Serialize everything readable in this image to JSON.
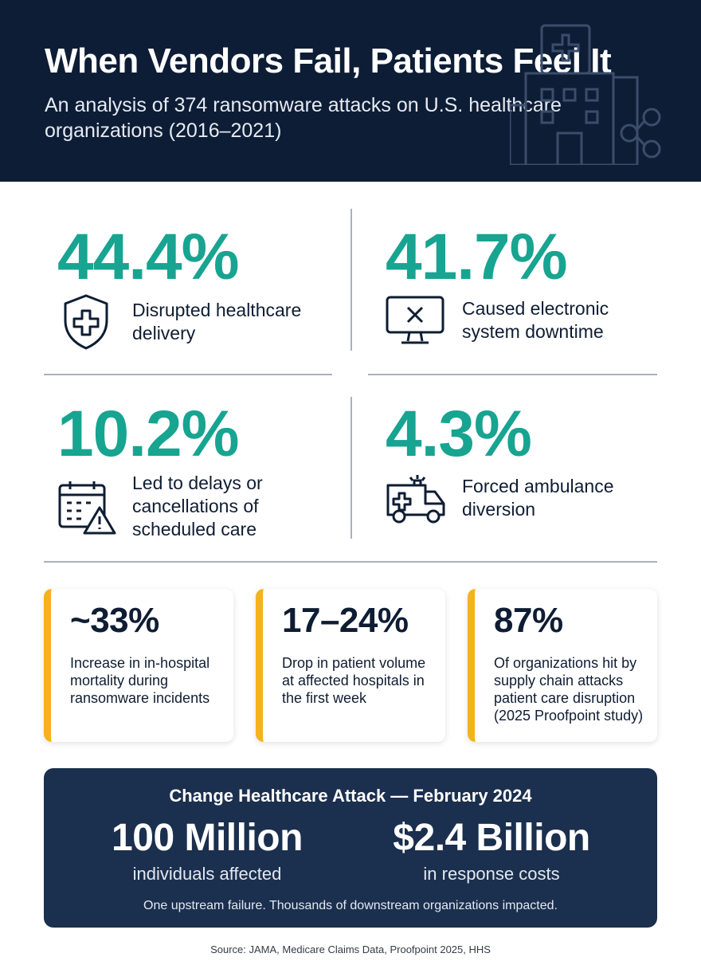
{
  "header": {
    "title": "When Vendors Fail, Patients Feel It",
    "subtitle": "An analysis of 374 ransomware attacks on U.S. healthcare organizations (2016–2021)"
  },
  "stats": [
    {
      "value": "44.4%",
      "label": "Disrupted healthcare delivery",
      "icon": "shield-cross-icon"
    },
    {
      "value": "41.7%",
      "label": "Caused electronic system downtime",
      "icon": "monitor-x-icon"
    },
    {
      "value": "10.2%",
      "label": "Led to delays or cancellations of scheduled care",
      "icon": "calendar-warning-icon"
    },
    {
      "value": "4.3%",
      "label": "Forced ambulance diversion",
      "icon": "ambulance-icon"
    }
  ],
  "cards": [
    {
      "value": "~33%",
      "text": "Increase in in-hospital mortality during ransomware incidents"
    },
    {
      "value": "17–24%",
      "text": "Drop in patient volume at affected hospitals in the first week"
    },
    {
      "value": "87%",
      "text": "Of organizations hit by supply chain attacks patient care disruption (2025 Proofpoint study)"
    }
  ],
  "callout": {
    "title": "Change Healthcare Attack — February 2024",
    "left_value": "100 Million",
    "left_label": "individuals affected",
    "right_value": "$2.4 Billion",
    "right_label": "in response costs",
    "footnote": "One upstream failure. Thousands of downstream organizations impacted."
  },
  "source": "Source: JAMA, Medicare Claims Data, Proofpoint 2025, HHS",
  "colors": {
    "header_bg": "#0e1d36",
    "stat_teal": "#17a491",
    "card_accent": "#f5b21b",
    "callout_bg": "#1b2f4e"
  }
}
